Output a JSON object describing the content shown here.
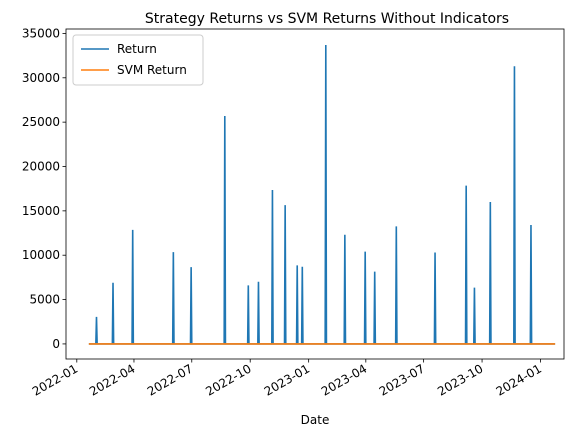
{
  "chart_data": {
    "type": "line",
    "title": "Strategy Returns vs SVM Returns Without Indicators",
    "xlabel": "Date",
    "ylabel": "",
    "xlim": [
      "2021-12-15",
      "2024-02-07"
    ],
    "ylim": [
      -1700,
      35500
    ],
    "xticks": [
      "2022-01",
      "2022-04",
      "2022-07",
      "2022-10",
      "2023-01",
      "2023-04",
      "2023-07",
      "2023-10",
      "2024-01"
    ],
    "xtick_dates": [
      "2022-01-01",
      "2022-04-01",
      "2022-07-01",
      "2022-10-01",
      "2023-01-01",
      "2023-04-01",
      "2023-07-01",
      "2023-10-01",
      "2024-01-01"
    ],
    "yticks": [
      0,
      5000,
      10000,
      15000,
      20000,
      25000,
      30000,
      35000
    ],
    "ytick_labels": [
      "0",
      "5000",
      "10000",
      "15000",
      "20000",
      "25000",
      "30000",
      "35000"
    ],
    "legend_position": "upper-left",
    "grid": false,
    "series": [
      {
        "name": "Return",
        "color": "#1f77b4",
        "start": "2022-01-20",
        "end": "2024-01-24",
        "spikes": [
          {
            "date": "2022-02-01",
            "value": 3050
          },
          {
            "date": "2022-02-27",
            "value": 6900
          },
          {
            "date": "2022-03-30",
            "value": 12850
          },
          {
            "date": "2022-06-02",
            "value": 10350
          },
          {
            "date": "2022-06-30",
            "value": 8650
          },
          {
            "date": "2022-08-22",
            "value": 25700
          },
          {
            "date": "2022-09-28",
            "value": 6600
          },
          {
            "date": "2022-10-14",
            "value": 7000
          },
          {
            "date": "2022-11-05",
            "value": 17350
          },
          {
            "date": "2022-11-25",
            "value": 15650
          },
          {
            "date": "2022-12-14",
            "value": 8850
          },
          {
            "date": "2022-12-22",
            "value": 8700
          },
          {
            "date": "2023-01-28",
            "value": 33700
          },
          {
            "date": "2023-02-27",
            "value": 12300
          },
          {
            "date": "2023-03-31",
            "value": 10400
          },
          {
            "date": "2023-04-15",
            "value": 8150
          },
          {
            "date": "2023-05-19",
            "value": 13250
          },
          {
            "date": "2023-07-19",
            "value": 10300
          },
          {
            "date": "2023-09-06",
            "value": 17850
          },
          {
            "date": "2023-09-19",
            "value": 6350
          },
          {
            "date": "2023-10-14",
            "value": 16000
          },
          {
            "date": "2023-11-21",
            "value": 31300
          },
          {
            "date": "2023-12-17",
            "value": 13400
          }
        ]
      },
      {
        "name": "SVM Return",
        "color": "#ff7f0e",
        "start": "2022-01-20",
        "end": "2024-01-24",
        "value": 0
      }
    ]
  }
}
